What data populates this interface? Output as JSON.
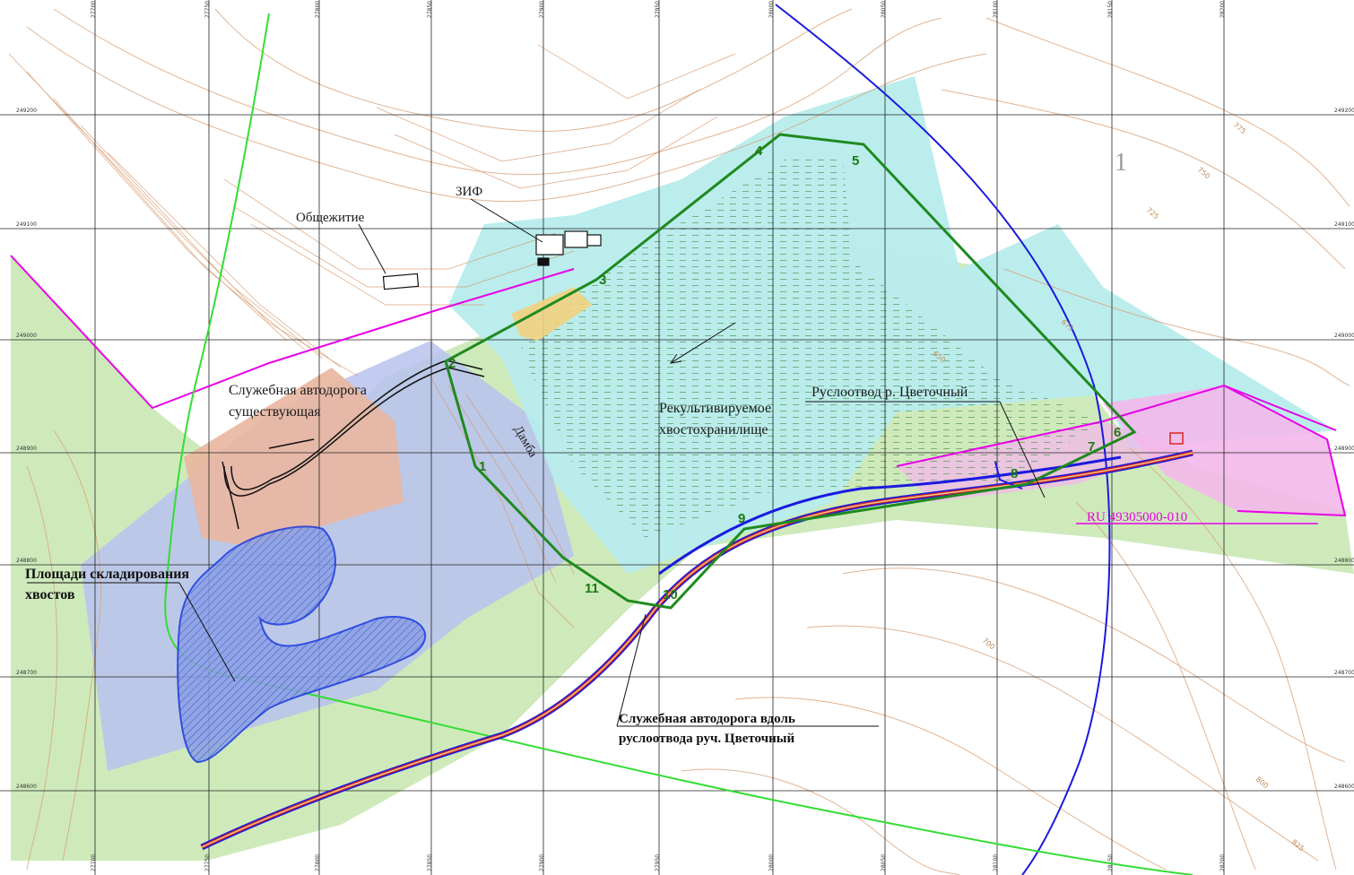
{
  "labels": {
    "dormitory": "Общежитие",
    "plant": "ЗИФ",
    "road_existing_line1": "Служебная автодорога",
    "road_existing_line2": "существующая",
    "dam": "Дамба",
    "reclaimed_line1": "Рекультивируемое",
    "reclaimed_line2": "хвостохранилище",
    "diversion": "Руслоотвод р. Цветочный",
    "license": "RU 49305000-010",
    "storage_line1": "Площади складирования",
    "storage_line2": "хвостов",
    "road_along_line1": "Служебная автодорога вдоль",
    "road_along_line2": "руслоотвода руч. Цветочный",
    "sheet_number": "1"
  },
  "grid": {
    "top_ticks": [
      "27700",
      "27750",
      "27800",
      "27850",
      "27900",
      "27950",
      "28000",
      "28050",
      "28100",
      "28150",
      "28200"
    ],
    "bottom_ticks": [
      "27700",
      "27750",
      "27800",
      "27850",
      "27900",
      "27950",
      "28000",
      "28050",
      "28100",
      "28150",
      "28200"
    ],
    "left_ticks": [
      "249200",
      "249100",
      "249000",
      "248900",
      "248800",
      "248700",
      "248600"
    ],
    "right_ticks": [
      "249200",
      "249100",
      "249000",
      "248900",
      "248800",
      "248700",
      "248600"
    ]
  },
  "contours": [
    "650",
    "675",
    "700",
    "725",
    "750",
    "775",
    "800",
    "825"
  ],
  "points": [
    "1",
    "2",
    "3",
    "4",
    "5",
    "6",
    "7",
    "8",
    "9",
    "10",
    "11"
  ],
  "colors": {
    "cyan_area": "#b7ecec",
    "green_area": "#c9e8b4",
    "pink_area": "#f3b8ea",
    "lilac_area": "#b8c2ee",
    "salmon_area": "#e9b6a0",
    "terrain": "#d9a37a",
    "boundary": "#1f8a1f",
    "magenta_line": "#e800e8",
    "blue_line": "#1a1ae0",
    "light_green_line": "#33dd33"
  }
}
